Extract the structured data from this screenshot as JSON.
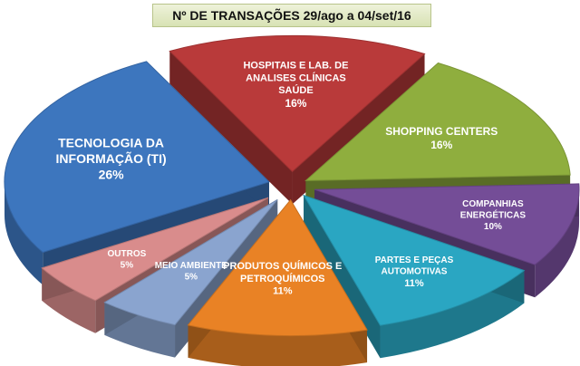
{
  "title": "Nº DE TRANSAÇÕES   29/ago a 04/set/16",
  "chart_data": {
    "type": "pie",
    "title": "Nº DE TRANSAÇÕES   29/ago a 04/set/16",
    "slices": [
      {
        "lines": [
          "SHOPPING CENTERS"
        ],
        "value": 16,
        "pct_label": "16%",
        "color": "#8fae3e"
      },
      {
        "lines": [
          "COMPANHIAS",
          "ENERGÉTICAS"
        ],
        "value": 10,
        "pct_label": "10%",
        "color": "#744d97"
      },
      {
        "lines": [
          "PARTES E PEÇAS",
          "AUTOMOTIVAS"
        ],
        "value": 11,
        "pct_label": "11%",
        "color": "#2aa6c2"
      },
      {
        "lines": [
          "PRODUTOS QUÍMICOS E",
          "PETROQUÍMICOS"
        ],
        "value": 11,
        "pct_label": "11%",
        "color": "#e98225"
      },
      {
        "lines": [
          "MEIO AMBIENTE"
        ],
        "value": 5,
        "pct_label": "5%",
        "color": "#8aa4cf"
      },
      {
        "lines": [
          "OUTROS"
        ],
        "value": 5,
        "pct_label": "5%",
        "color": "#d98c8c"
      },
      {
        "lines": [
          "TECNOLOGIA DA",
          "INFORMAÇÃO (TI)"
        ],
        "value": 26,
        "pct_label": "26%",
        "color": "#3d76be"
      },
      {
        "lines": [
          "HOSPITAIS E LAB. DE",
          "ANALISES CLÍNICAS",
          "SAÚDE"
        ],
        "value": 16,
        "pct_label": "16%",
        "color": "#b93a3a"
      }
    ]
  }
}
